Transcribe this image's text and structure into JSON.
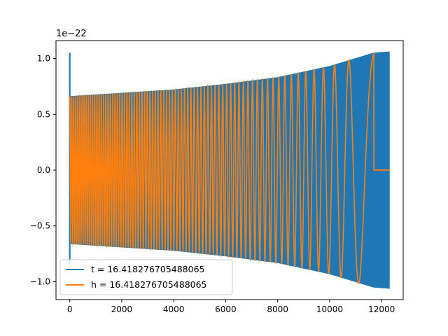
{
  "chart_data": {
    "type": "line",
    "title": "",
    "xlabel": "",
    "ylabel": "",
    "offset_label": "1e−22",
    "xlim": [
      -530,
      12830
    ],
    "ylim": [
      -1.16,
      1.16
    ],
    "xticks": [
      0,
      2000,
      4000,
      6000,
      8000,
      10000,
      12000
    ],
    "xtick_labels": [
      "0",
      "2000",
      "4000",
      "6000",
      "8000",
      "10000",
      "12000"
    ],
    "yticks": [
      -1.0,
      -0.5,
      0.0,
      0.5,
      1.0
    ],
    "ytick_labels": [
      "−1.0",
      "−0.5",
      "0.0",
      "0.5",
      "1.0"
    ],
    "grid": false,
    "legend_position": "lower-left",
    "series": [
      {
        "name": "t = 16.418276705488065",
        "color": "#1f77b4",
        "x_range": [
          0,
          12300
        ],
        "initial_spike": {
          "x": 0,
          "max": 1.05,
          "min": -0.85
        },
        "envelope": {
          "x": [
            0,
            2000,
            4000,
            6000,
            8000,
            10000,
            11700,
            12300
          ],
          "y": [
            0.66,
            0.69,
            0.72,
            0.77,
            0.83,
            0.93,
            1.05,
            1.06
          ]
        }
      },
      {
        "name": "h = 16.418276705488065",
        "color": "#ff7f0e",
        "x_range": [
          0,
          12300
        ],
        "signal_end": 11700,
        "envelope": {
          "x": [
            0,
            2000,
            4000,
            6000,
            8000,
            10000,
            11700
          ],
          "y": [
            0.66,
            0.69,
            0.72,
            0.77,
            0.83,
            0.93,
            1.06
          ]
        },
        "tail_value": 0.0
      }
    ]
  }
}
